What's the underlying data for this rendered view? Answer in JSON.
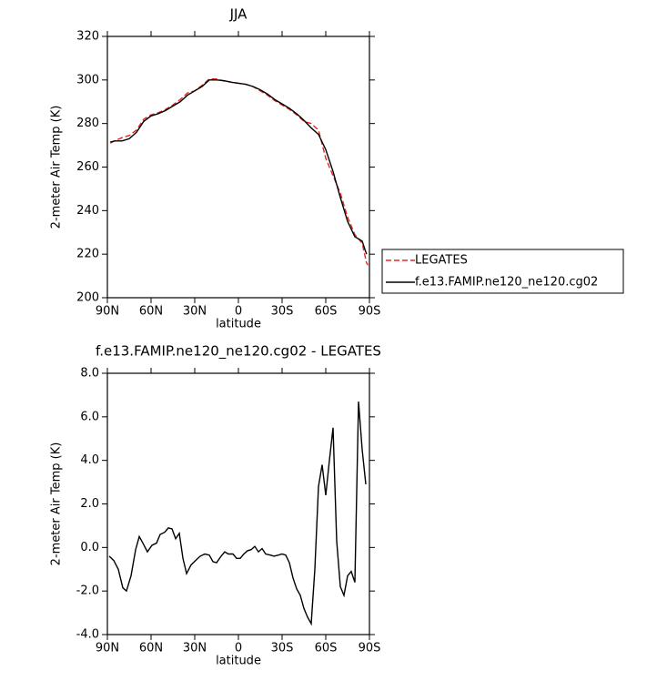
{
  "chart_data": [
    {
      "type": "line",
      "title": "JJA",
      "xlabel": "latitude",
      "ylabel": "2-meter Air Temp (K)",
      "xlim": [
        90,
        -90
      ],
      "ylim": [
        200,
        320
      ],
      "xticks": [
        {
          "value": 90,
          "label": "90N"
        },
        {
          "value": 60,
          "label": "60N"
        },
        {
          "value": 30,
          "label": "30N"
        },
        0,
        {
          "value": -30,
          "label": "30S"
        },
        {
          "value": -60,
          "label": "60S"
        },
        {
          "value": -90,
          "label": "90S"
        }
      ],
      "yticks": [
        200,
        220,
        240,
        260,
        280,
        300,
        320
      ],
      "legend": "right",
      "series": [
        {
          "name": "LEGATES",
          "color": "#e8261e",
          "dashed": true,
          "x": [
            88,
            85,
            80,
            75,
            70,
            65,
            60,
            55,
            50,
            45,
            40,
            35,
            30,
            25,
            20,
            15,
            10,
            5,
            0,
            -5,
            -10,
            -15,
            -20,
            -25,
            -30,
            -35,
            -40,
            -45,
            -50,
            -55,
            -60,
            -65,
            -70,
            -75,
            -80,
            -85,
            -88,
            -89
          ],
          "values": [
            271,
            272,
            273.5,
            274.5,
            277,
            282,
            284,
            285,
            286.5,
            288.5,
            291,
            294,
            295,
            297.5,
            300.5,
            300.5,
            299.5,
            299,
            298.5,
            298,
            297,
            295,
            293,
            290.5,
            288.5,
            286.5,
            284,
            281,
            280,
            277,
            264,
            256,
            248,
            237,
            229,
            225,
            216,
            215
          ]
        },
        {
          "name": "f.e13.FAMIP.ne120_ne120.cg02",
          "color": "#000000",
          "dashed": false,
          "x": [
            88,
            85,
            80,
            75,
            70,
            65,
            60,
            55,
            50,
            45,
            40,
            35,
            30,
            25,
            20,
            15,
            10,
            5,
            0,
            -5,
            -10,
            -15,
            -20,
            -25,
            -30,
            -35,
            -40,
            -45,
            -50,
            -55,
            -60,
            -65,
            -70,
            -75,
            -80,
            -85,
            -88
          ],
          "values": [
            271.5,
            272,
            272,
            273,
            276,
            281,
            283.5,
            284.5,
            286,
            288,
            290,
            293,
            295,
            297,
            300,
            300,
            299.7,
            299,
            298.5,
            298,
            297,
            295.5,
            293.5,
            291,
            289,
            287,
            284.5,
            281.5,
            278,
            275,
            268,
            258,
            246,
            235,
            228,
            226,
            220
          ]
        }
      ]
    },
    {
      "type": "line",
      "title": "f.e13.FAMIP.ne120_ne120.cg02 - LEGATES",
      "xlabel": "latitude",
      "ylabel": "2-meter Air Temp (K)",
      "xlim": [
        90,
        -90
      ],
      "ylim": [
        -4,
        8
      ],
      "xticks": [
        {
          "value": 90,
          "label": "90N"
        },
        {
          "value": 60,
          "label": "60N"
        },
        {
          "value": 30,
          "label": "30N"
        },
        0,
        {
          "value": -30,
          "label": "30S"
        },
        {
          "value": -60,
          "label": "60S"
        },
        {
          "value": -90,
          "label": "90S"
        }
      ],
      "yticks": [
        {
          "value": -4,
          "label": "-4.0"
        },
        {
          "value": -2,
          "label": "-2.0"
        },
        {
          "value": 0,
          "label": "0.0"
        },
        {
          "value": 2,
          "label": "2.0"
        },
        {
          "value": 4,
          "label": "4.0"
        },
        {
          "value": 6,
          "label": "6.0"
        },
        {
          "value": 8,
          "label": "8.0"
        }
      ],
      "series": [
        {
          "color": "#000000",
          "dashed": false,
          "x": [
            88.75,
            85.6,
            82.5,
            79.4,
            76.9,
            73.75,
            70.6,
            68.1,
            65.6,
            62.5,
            59.4,
            56.25,
            53.75,
            50.6,
            48.1,
            45.6,
            43.1,
            40.6,
            38.1,
            35.6,
            32.5,
            29.4,
            26.25,
            23.1,
            20,
            17.5,
            15,
            11.9,
            9.4,
            6.9,
            3.75,
            1.25,
            -1.25,
            -3.75,
            -6.25,
            -8.75,
            -11.25,
            -13.75,
            -16.25,
            -18.75,
            -21.9,
            -24.4,
            -27.5,
            -30,
            -32.5,
            -35,
            -37.5,
            -40,
            -42.5,
            -45,
            -47.5,
            -50,
            -52.5,
            -55,
            -57.5,
            -60,
            -62.5,
            -65,
            -67.5,
            -70,
            -72.5,
            -75,
            -77.5,
            -80,
            -82.5,
            -85,
            -87.5
          ],
          "values": [
            -0.4,
            -0.6,
            -1.0,
            -1.85,
            -2.0,
            -1.3,
            -0.1,
            0.5,
            0.2,
            -0.2,
            0.1,
            0.2,
            0.6,
            0.7,
            0.9,
            0.85,
            0.4,
            0.65,
            -0.5,
            -1.2,
            -0.8,
            -0.6,
            -0.4,
            -0.3,
            -0.35,
            -0.65,
            -0.7,
            -0.4,
            -0.2,
            -0.3,
            -0.3,
            -0.5,
            -0.5,
            -0.3,
            -0.15,
            -0.1,
            0.05,
            -0.2,
            -0.05,
            -0.3,
            -0.35,
            -0.4,
            -0.35,
            -0.3,
            -0.35,
            -0.7,
            -1.4,
            -1.9,
            -2.2,
            -2.8,
            -3.2,
            -3.5,
            -1.0,
            2.8,
            3.8,
            2.4,
            4.0,
            5.5,
            0.3,
            -1.8,
            -2.2,
            -1.3,
            -1.1,
            -1.6,
            6.7,
            4.5,
            2.9
          ]
        }
      ]
    }
  ]
}
